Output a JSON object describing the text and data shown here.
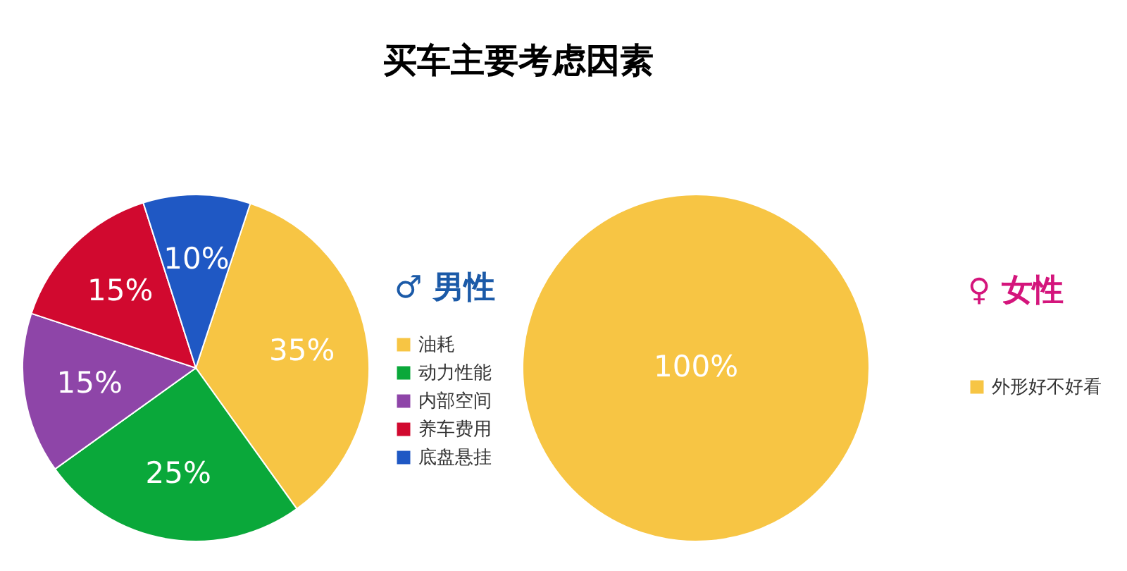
{
  "chart_data": [
    {
      "type": "pie",
      "title": "买车主要考虑因素",
      "legend_title": "♂ 男性",
      "categories": [
        "油耗",
        "动力性能",
        "内部空间",
        "养车费用",
        "底盘悬挂"
      ],
      "values": [
        35,
        25,
        15,
        15,
        10
      ],
      "colors": [
        "#f7c544",
        "#0aa83a",
        "#8e45a8",
        "#d1092f",
        "#1f58c4"
      ],
      "value_labels": [
        "35%",
        "25%",
        "15%",
        "15%",
        "10%"
      ],
      "legend": "right"
    },
    {
      "type": "pie",
      "legend_title": "♀ 女性",
      "categories": [
        "外形好不好看"
      ],
      "values": [
        100
      ],
      "colors": [
        "#f7c544"
      ],
      "value_labels": [
        "100%"
      ],
      "legend": "right"
    }
  ]
}
